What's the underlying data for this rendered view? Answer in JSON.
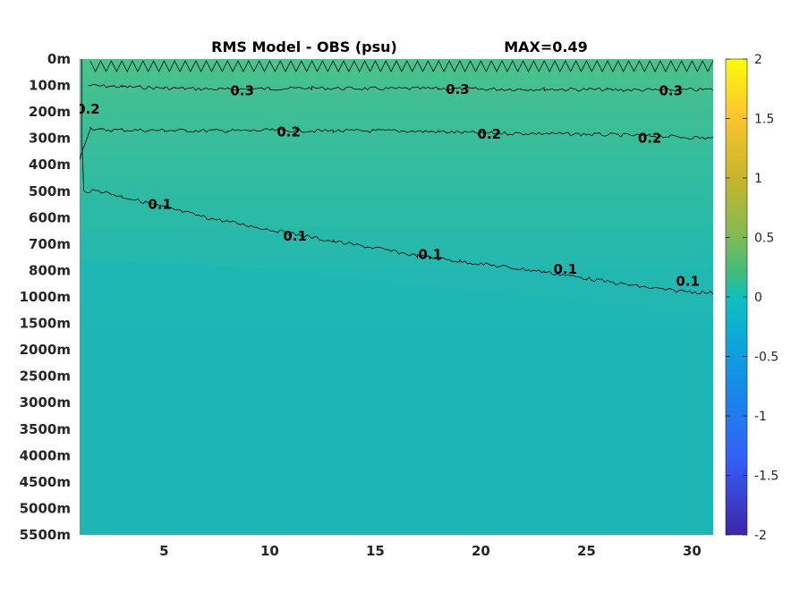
{
  "chart_data": {
    "type": "heatmap",
    "title": "RMS Model - OBS (psu)",
    "max_label": "MAX=0.49",
    "x_ticks": [
      5,
      10,
      15,
      20,
      25,
      30
    ],
    "x_range": [
      1,
      31
    ],
    "y_ticks": [
      "0m",
      "100m",
      "200m",
      "300m",
      "400m",
      "500m",
      "600m",
      "700m",
      "800m",
      "1000m",
      "1500m",
      "2000m",
      "2500m",
      "3000m",
      "3500m",
      "4000m",
      "4500m",
      "5000m",
      "5500m"
    ],
    "colorbar": {
      "ticks": [
        "2",
        "1.5",
        "1",
        "0.5",
        "0",
        "-0.5",
        "-1",
        "-1.5",
        "-2"
      ],
      "range": [
        -2,
        2
      ],
      "colormap": "parula"
    },
    "contours": [
      {
        "level": "0.3",
        "points": [
          [
            1.4,
            1.0
          ],
          [
            3,
            1.05
          ],
          [
            5,
            1.1
          ],
          [
            8,
            1.15
          ],
          [
            10,
            1.12
          ],
          [
            12,
            1.1
          ],
          [
            15,
            1.12
          ],
          [
            18,
            1.12
          ],
          [
            20,
            1.14
          ],
          [
            23,
            1.14
          ],
          [
            26,
            1.16
          ],
          [
            29,
            1.18
          ],
          [
            31,
            1.15
          ]
        ],
        "labels": [
          [
            8.7,
            1.2
          ],
          [
            18.9,
            1.15
          ],
          [
            29.0,
            1.2
          ]
        ]
      },
      {
        "level": "0.2",
        "points": [
          [
            1.0,
            3.8
          ],
          [
            1.5,
            2.6
          ],
          [
            2,
            2.68
          ],
          [
            5,
            2.7
          ],
          [
            8,
            2.72
          ],
          [
            10,
            2.7
          ],
          [
            13,
            2.72
          ],
          [
            16,
            2.72
          ],
          [
            18,
            2.75
          ],
          [
            20,
            2.8
          ],
          [
            23,
            2.82
          ],
          [
            25,
            2.85
          ],
          [
            28,
            2.9
          ],
          [
            31,
            3.0
          ]
        ],
        "labels": [
          [
            10.9,
            2.75
          ],
          [
            20.4,
            2.85
          ],
          [
            28.0,
            3.0
          ],
          [
            1.4,
            1.9
          ]
        ]
      },
      {
        "level": "0.1",
        "points": [
          [
            1.1,
            0.0
          ],
          [
            1.1,
            3.0
          ],
          [
            1.2,
            5.0
          ],
          [
            2,
            5.0
          ],
          [
            3,
            5.2
          ],
          [
            5,
            5.6
          ],
          [
            7,
            6.0
          ],
          [
            9,
            6.3
          ],
          [
            11,
            6.6
          ],
          [
            13,
            6.9
          ],
          [
            15,
            7.15
          ],
          [
            17,
            7.45
          ],
          [
            19,
            7.65
          ],
          [
            21,
            7.85
          ],
          [
            23,
            8.05
          ],
          [
            25,
            8.3
          ],
          [
            27,
            8.55
          ],
          [
            29,
            8.75
          ],
          [
            31,
            8.85
          ]
        ],
        "labels": [
          [
            4.8,
            5.5
          ],
          [
            11.2,
            6.7
          ],
          [
            17.6,
            7.4
          ],
          [
            24.0,
            7.95
          ],
          [
            29.8,
            8.4
          ]
        ]
      }
    ]
  }
}
